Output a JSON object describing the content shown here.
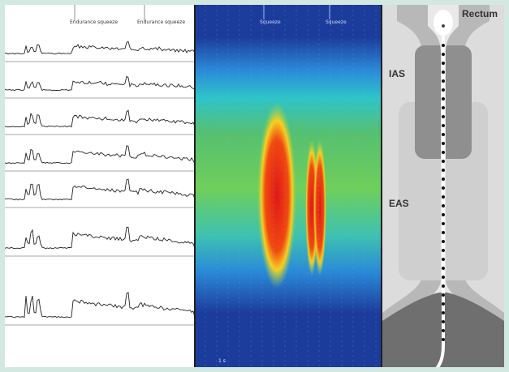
{
  "traces": {
    "events": [
      {
        "label": "Endurance squeeze"
      },
      {
        "label": "Endurance squeeze"
      }
    ]
  },
  "topography": {
    "events": [
      {
        "label": "Squeeze"
      },
      {
        "label": "Squeeze"
      }
    ],
    "scale_label": "1 s"
  },
  "anatomy": {
    "labels": {
      "rectum": "Rectum",
      "ias": "IAS",
      "eas": "EAS"
    }
  },
  "colors": {
    "frame_background": "#d3e8e0",
    "topography_low": "#1c3c9c",
    "topography_high": "#e01818"
  }
}
